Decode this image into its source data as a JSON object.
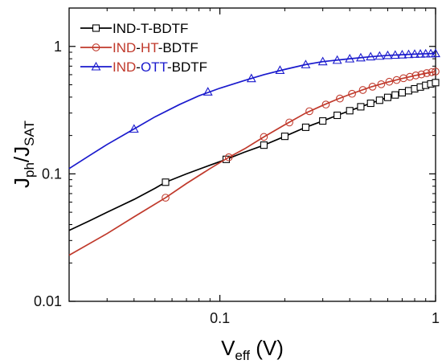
{
  "chart_data": {
    "type": "line",
    "xscale": "log",
    "yscale": "log",
    "xlim": [
      0.02,
      1.0
    ],
    "ylim": [
      0.01,
      2.0
    ],
    "xlabel": {
      "main": "V",
      "sub": "eff",
      "unit": " (V)"
    },
    "ylabel": {
      "main1": "J",
      "sub1": "ph",
      "slash": "/",
      "main2": "J",
      "sub2": "SAT"
    },
    "x_ticks": [
      {
        "value": 0.1,
        "label": "0.1"
      },
      {
        "value": 1.0,
        "label": "1"
      }
    ],
    "y_ticks": [
      {
        "value": 0.01,
        "label": "0.01"
      },
      {
        "value": 0.1,
        "label": "0.1"
      },
      {
        "value": 1.0,
        "label": "1"
      }
    ],
    "legend_position": "top-left",
    "grid": false,
    "series": [
      {
        "name": "IND-T-BDTF",
        "name_parts": [
          {
            "text": "IND",
            "color": "#000000"
          },
          {
            "text": "-T-BDTF",
            "color": "#000000"
          }
        ],
        "color": "#000000",
        "marker": "square",
        "curve_x": [
          0.02,
          0.025,
          0.03,
          0.04,
          0.05,
          0.056,
          0.07,
          0.09,
          0.107,
          0.13,
          0.16,
          0.2,
          0.25,
          0.3,
          0.35,
          0.4,
          0.5,
          0.6,
          0.7,
          0.8,
          0.9,
          1.0
        ],
        "curve_y": [
          0.036,
          0.043,
          0.05,
          0.063,
          0.077,
          0.086,
          0.1,
          0.117,
          0.13,
          0.148,
          0.168,
          0.197,
          0.232,
          0.26,
          0.288,
          0.313,
          0.358,
          0.398,
          0.433,
          0.465,
          0.495,
          0.52
        ],
        "marker_x": [
          0.056,
          0.107,
          0.16,
          0.2,
          0.25,
          0.3,
          0.35,
          0.4,
          0.45,
          0.5,
          0.55,
          0.6,
          0.65,
          0.7,
          0.75,
          0.8,
          0.85,
          0.9,
          0.95,
          1.0
        ],
        "marker_y": [
          0.086,
          0.13,
          0.168,
          0.197,
          0.232,
          0.26,
          0.288,
          0.313,
          0.336,
          0.358,
          0.378,
          0.398,
          0.416,
          0.433,
          0.449,
          0.465,
          0.48,
          0.495,
          0.508,
          0.52
        ]
      },
      {
        "name": "IND-HT-BDTF",
        "name_parts": [
          {
            "text": "IND",
            "color": "#c0392b"
          },
          {
            "text": "-",
            "color": "#000000"
          },
          {
            "text": "HT",
            "color": "#c0392b"
          },
          {
            "text": "-BDTF",
            "color": "#000000"
          }
        ],
        "color": "#c0392b",
        "marker": "circle",
        "curve_x": [
          0.02,
          0.03,
          0.04,
          0.056,
          0.07,
          0.09,
          0.11,
          0.13,
          0.16,
          0.2,
          0.25,
          0.3,
          0.35,
          0.4,
          0.5,
          0.6,
          0.7,
          0.8,
          0.9,
          1.0
        ],
        "curve_y": [
          0.023,
          0.034,
          0.046,
          0.065,
          0.084,
          0.11,
          0.135,
          0.157,
          0.195,
          0.243,
          0.3,
          0.345,
          0.385,
          0.42,
          0.48,
          0.525,
          0.56,
          0.59,
          0.615,
          0.635
        ],
        "marker_x": [
          0.056,
          0.11,
          0.16,
          0.21,
          0.26,
          0.31,
          0.36,
          0.41,
          0.46,
          0.51,
          0.56,
          0.61,
          0.66,
          0.71,
          0.76,
          0.81,
          0.86,
          0.91,
          0.96,
          1.0
        ],
        "marker_y": [
          0.065,
          0.135,
          0.195,
          0.253,
          0.31,
          0.35,
          0.39,
          0.425,
          0.455,
          0.483,
          0.505,
          0.528,
          0.545,
          0.563,
          0.577,
          0.592,
          0.603,
          0.617,
          0.628,
          0.635
        ]
      },
      {
        "name": "IND-OTT-BDTF",
        "name_parts": [
          {
            "text": "IND",
            "color": "#c0392b"
          },
          {
            "text": "-",
            "color": "#000000"
          },
          {
            "text": "OTT",
            "color": "#1a1acd"
          },
          {
            "text": "-BDTF",
            "color": "#000000"
          }
        ],
        "color": "#1a1acd",
        "marker": "triangle",
        "curve_x": [
          0.02,
          0.025,
          0.03,
          0.04,
          0.05,
          0.065,
          0.08,
          0.1,
          0.13,
          0.16,
          0.2,
          0.25,
          0.3,
          0.4,
          0.5,
          0.6,
          0.7,
          0.8,
          0.9,
          1.0
        ],
        "curve_y": [
          0.11,
          0.14,
          0.17,
          0.225,
          0.28,
          0.35,
          0.41,
          0.47,
          0.54,
          0.6,
          0.66,
          0.72,
          0.76,
          0.8,
          0.83,
          0.85,
          0.86,
          0.87,
          0.875,
          0.88
        ],
        "marker_x": [
          0.04,
          0.088,
          0.14,
          0.19,
          0.25,
          0.3,
          0.35,
          0.4,
          0.45,
          0.5,
          0.55,
          0.6,
          0.65,
          0.7,
          0.75,
          0.8,
          0.85,
          0.9,
          0.95,
          1.0
        ],
        "marker_y": [
          0.225,
          0.44,
          0.56,
          0.65,
          0.72,
          0.76,
          0.78,
          0.8,
          0.815,
          0.83,
          0.84,
          0.85,
          0.855,
          0.86,
          0.865,
          0.87,
          0.872,
          0.875,
          0.877,
          0.88
        ]
      }
    ]
  }
}
